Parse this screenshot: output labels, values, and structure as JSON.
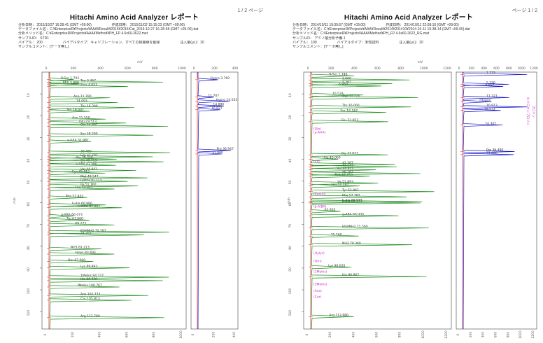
{
  "reports": [
    {
      "page_number": "1 / 2 ページ",
      "title": "Hitachi Amino Acid Analyzer レポート",
      "meta": {
        "row1": {
          "analysis_date_label": "分析日時：",
          "analysis_date": "2015/10/27 16:28:41 (GMT +09:00)",
          "created_date_label": "作成日時：",
          "created_date": "2015/11/02 15:15:23 (GMT +09:00)"
        },
        "row2": "データファイル名：C:¥EnterpriseR¥Projects¥AAA¥Result¥2015¥2015ICal_2015-10-27 16-28-58 (GMT +09-00).dat",
        "row3": "分析メソッド名：C:¥EnterpriseR¥Projects¥AAA¥Method¥PH_FP 4.6x60-2622.met",
        "row4": "サンプルID：   STD1",
        "row5": {
          "label": "バイアル：",
          "vial": "200",
          "type": "バイアルタイプ：キャリブレーション、すべての検量線を削除",
          "inj": "注入量(μL)：20"
        },
        "row6": "サンプルコメント：[データ無し]"
      },
      "mv_label": "mV",
      "min_label": "min",
      "y_ticks": [
        "10",
        "20",
        "30",
        "40",
        "50",
        "60",
        "70",
        "80",
        "90",
        "100",
        "110"
      ],
      "x_ticks_ch1": [
        "0",
        "200",
        "400",
        "600",
        "800",
        "1000"
      ],
      "x_ticks_ch2": [
        "0",
        "200",
        "400"
      ],
      "peaks": [
        {
          "t": 3.4,
          "label": "P-Ser 1.793"
        },
        {
          "t": 4.6,
          "label": "Tau 3.467"
        },
        {
          "t": 5.5,
          "label": "PEA 3.889"
        },
        {
          "t": 6.6,
          "label": "Urea 4.653"
        },
        {
          "t": 11.8,
          "label": "Asp 11.780"
        },
        {
          "t": 14.0,
          "label": "14.093"
        },
        {
          "t": 16.3,
          "label": "Thr 16.300"
        },
        {
          "t": 18.0,
          "label": "Ser 18.007"
        },
        {
          "t": 21.6,
          "label": "Asn 21.550"
        },
        {
          "t": 23.4,
          "label": "Glu 23.513"
        },
        {
          "t": 24.9,
          "label": "Gln 24.867"
        },
        {
          "t": 29.0,
          "label": "Sar 29.290"
        },
        {
          "t": 31.9,
          "label": "a-AAA 31.987"
        },
        {
          "t": 37.0,
          "label": "36.480"
        },
        {
          "t": 38.9,
          "label": "Gly 37.703"
        },
        {
          "t": 40.0,
          "label": "Ala 39.220"
        },
        {
          "t": 41.2,
          "label": "Cit 40.713"
        },
        {
          "t": 42.8,
          "label": "a-ABA 42.560"
        },
        {
          "t": 45.2,
          "label": "Val 44.843"
        },
        {
          "t": 46.4,
          "label": "Cys 45.813"
        },
        {
          "t": 48.6,
          "label": "Met 48.547"
        },
        {
          "t": 50.2,
          "label": "Cysthi 50.113"
        },
        {
          "t": 52.3,
          "label": "Ile 51.760"
        },
        {
          "t": 53.7,
          "label": "Leu 52.827"
        },
        {
          "t": 57.6,
          "label": "Phe 57.453"
        },
        {
          "t": 61.0,
          "label": "b-Ala 60.980"
        },
        {
          "t": 62.3,
          "label": "b-AiBA 62.007"
        },
        {
          "t": 66.1,
          "label": "g-ABA 66.073"
        },
        {
          "t": 68.0,
          "label": "Trp 67.660"
        },
        {
          "t": 70.2,
          "label": "69.273"
        },
        {
          "t": 73.5,
          "label": "EOHNH2 72.787"
        },
        {
          "t": 74.8,
          "label": "74.767"
        },
        {
          "t": 81.2,
          "label": "NH3 81.213"
        },
        {
          "t": 83.6,
          "label": "Hylys 83.693"
        },
        {
          "t": 87.0,
          "label": "Orn 87.000"
        },
        {
          "t": 89.9,
          "label": "Lys 89.893"
        },
        {
          "t": 94.2,
          "label": "1Mehis 94.227"
        },
        {
          "t": 95.8,
          "label": "His 96.520"
        },
        {
          "t": 98.7,
          "label": "3Mehis 100.767"
        },
        {
          "t": 102.6,
          "label": "Ans 102.773"
        },
        {
          "t": 104.8,
          "label": "Car 105.813"
        },
        {
          "t": 112.8,
          "label": "Arg 112.780"
        }
      ],
      "ch2_peaks": [
        {
          "t": 3.5,
          "label": "Hypro 3.760"
        },
        {
          "t": 11.5,
          "label": "11.707"
        },
        {
          "t": 13.4,
          "label": "Hypro 14.033"
        },
        {
          "t": 15.6,
          "label": "14.880"
        },
        {
          "t": 17.3,
          "label": "16.827"
        },
        {
          "t": 36.0,
          "label": "Pro 36.947"
        },
        {
          "t": 37.6,
          "label": "37.980"
        }
      ]
    },
    {
      "page_number": "ページ 1 / 2",
      "title": "Hitachi Amino Acid Analyzer レポート",
      "meta": {
        "row1": {
          "analysis_date_label": "分析日時：",
          "analysis_date": "2014/10/11 19:39:57 (GMT +09:00)",
          "created_date_label": "作成日時：",
          "created_date": "2014/10/11 22:08:10 (GMT +09:00)"
        },
        "row2": "データファイル名：C:¥EnterpriseR¥Projects¥AAA¥Result¥2014¥201410¥2014-10-11 19-38-14 (GMT +09-00).dat",
        "row3": "分析メソッド名：C:¥EnterpriseR¥Projects¥AAA¥Method¥PH_FP 4.6x60-2622_RG.met",
        "row4": "サンプルID：   アミノ酸分析予備-1",
        "row5": {
          "label": "バイアル：",
          "vial": "190",
          "type": "バイアルタイプ：未知試料",
          "inj": "注入量(μL)：20"
        },
        "row6": "サンプルコメント：[データ無し]"
      },
      "mv_label": "mV",
      "min_label": "min",
      "y_ticks": [
        "10",
        "20",
        "30",
        "40",
        "50",
        "60",
        "70",
        "80",
        "90",
        "100",
        "110"
      ],
      "x_ticks_ch1": [
        "0",
        "200",
        "400",
        "600",
        "800",
        "1000",
        "1200"
      ],
      "x_ticks_ch2": [
        "0",
        "200",
        "400",
        "600",
        "800",
        "1000",
        "1200"
      ],
      "peaks": [
        {
          "t": 1.7,
          "label": "P-Ser 1.746"
        },
        {
          "t": 3.6,
          "label": "3.660"
        },
        {
          "t": 5.3,
          "label": "5.262"
        },
        {
          "t": 6.4,
          "label": "6.860"
        },
        {
          "t": 10.5,
          "label": "10.533"
        },
        {
          "t": 11.7,
          "label": "Asp 11.720"
        },
        {
          "t": 16.0,
          "label": "Thr 16.000"
        },
        {
          "t": 18.5,
          "label": "Ser 18.587"
        },
        {
          "t": 22.8,
          "label": "Glu 22.853"
        },
        {
          "t": 38.0,
          "label": "Gly 37.973"
        },
        {
          "t": 40.0,
          "label": "Ala 40.060"
        },
        {
          "t": 42.4,
          "label": "42.387"
        },
        {
          "t": 43.5,
          "label": "43.173"
        },
        {
          "t": 44.9,
          "label": "Val 44.913"
        },
        {
          "t": 46.6,
          "label": "46.793"
        },
        {
          "t": 47.8,
          "label": "Met 47.753"
        },
        {
          "t": 51.0,
          "label": "Ile 51.893"
        },
        {
          "t": 52.3,
          "label": "Leu 52.287"
        },
        {
          "t": 54.9,
          "label": "Tyr 52.967"
        },
        {
          "t": 57.3,
          "label": "Phe 57.787"
        },
        {
          "t": 59.5,
          "label": "b-Ala 59.573"
        },
        {
          "t": 60.1,
          "label": "b-Ala 60.127"
        },
        {
          "t": 63.9,
          "label": "63.920"
        },
        {
          "t": 66.0,
          "label": "g-ABA 66.000"
        },
        {
          "t": 71.6,
          "label": "EOHNH2 71.560"
        },
        {
          "t": 75.3,
          "label": "75.260"
        },
        {
          "t": 79.3,
          "label": "NH3 79.360"
        },
        {
          "t": 89.6,
          "label": "Lys 90.620"
        },
        {
          "t": 93.9,
          "label": "His 96.867"
        },
        {
          "t": 112.3,
          "label": "Arg 112.980"
        }
      ],
      "ch2_peaks": [
        {
          "t": 1.1,
          "label": "1.773"
        },
        {
          "t": 5.6,
          "label": "5.150"
        },
        {
          "t": 6.6,
          "label": "6.607"
        },
        {
          "t": 11.7,
          "label": "11.727"
        },
        {
          "t": 13.6,
          "label": "(Hypro)"
        },
        {
          "t": 16.0,
          "label": "16.913"
        },
        {
          "t": 17.6,
          "label": "18.573"
        },
        {
          "t": 24.3,
          "label": "24.347"
        },
        {
          "t": 36.5,
          "label": "Pro 36.480"
        },
        {
          "t": 37.9,
          "label": "37.880"
        }
      ],
      "missing_labels": [
        {
          "t": 26.5,
          "label": "(Gln)"
        },
        {
          "t": 28.2,
          "label": "(a-AAA)"
        },
        {
          "t": 41.5,
          "label": "(Cit)"
        },
        {
          "t": 56.2,
          "label": "(Cysthi)"
        },
        {
          "t": 62.2,
          "label": "(b-AiBA)"
        },
        {
          "t": 83.6,
          "label": "(Hylys)"
        },
        {
          "t": 87.3,
          "label": "(Orn)"
        },
        {
          "t": 92.1,
          "label": "(1Mehis)"
        },
        {
          "t": 97.9,
          "label": "(3Mehis)"
        },
        {
          "t": 100.9,
          "label": "(Ans)"
        },
        {
          "t": 103.7,
          "label": "(Car)"
        }
      ],
      "ch2_side_labels": [
        "プロリン",
        "ヒドロキシプロリン"
      ]
    }
  ],
  "colors": {
    "trace_green": "#1a8a1a",
    "trace_blue": "#1010cc",
    "baseline_red": "#dd2222",
    "missing_pink": "#cc22cc"
  }
}
